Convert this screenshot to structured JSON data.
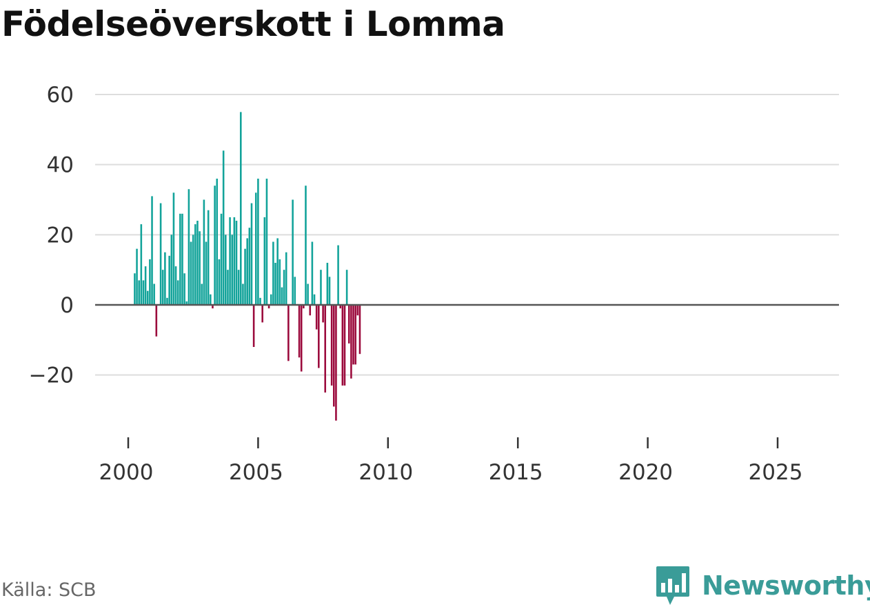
{
  "title": "Födelseöverskott i Lomma",
  "source": "Källa: SCB",
  "brand": {
    "name": "Newsworthy",
    "icon": "bar-chart-speech-icon"
  },
  "colors": {
    "positive": "#12a39a",
    "negative": "#9b0a3c",
    "brand": "#3a9c98",
    "grid": "#dddddd",
    "zero": "#555555"
  },
  "chart_data": {
    "type": "bar",
    "title": "Födelseöverskott i Lomma",
    "xlabel": "",
    "ylabel": "",
    "ylim": [
      -35,
      62
    ],
    "xlim": [
      1999.75,
      2027.3
    ],
    "yticks": [
      {
        "value": 60,
        "label": "60"
      },
      {
        "value": 40,
        "label": "40"
      },
      {
        "value": 20,
        "label": "20"
      },
      {
        "value": 0,
        "label": "0"
      },
      {
        "value": -20,
        "label": "−20"
      }
    ],
    "xticks": [
      {
        "value": 2000,
        "label": "2000"
      },
      {
        "value": 2005,
        "label": "2005"
      },
      {
        "value": 2010,
        "label": "2010"
      },
      {
        "value": 2015,
        "label": "2015"
      },
      {
        "value": 2020,
        "label": "2020"
      },
      {
        "value": 2025,
        "label": "2025"
      }
    ],
    "grid": true,
    "frequency": "monthly",
    "start": "2000-04",
    "values": [
      9,
      16,
      7,
      23,
      7,
      11,
      4,
      13,
      31,
      6,
      -9,
      null,
      29,
      10,
      15,
      2,
      14,
      20,
      32,
      11,
      7,
      26,
      26,
      9,
      1,
      33,
      18,
      20,
      23,
      24,
      21,
      6,
      30,
      18,
      27,
      3,
      -1,
      34,
      36,
      13,
      26,
      44,
      20,
      10,
      25,
      20,
      25,
      24,
      10,
      55,
      6,
      16,
      19,
      22,
      29,
      -12,
      32,
      36,
      2,
      -5,
      25,
      36,
      -1,
      3,
      18,
      12,
      19,
      13,
      5,
      10,
      15,
      -16,
      null,
      30,
      8,
      null,
      -15,
      -19,
      -1,
      34,
      6,
      -3,
      18,
      3,
      -7,
      -18,
      10,
      -5,
      -25,
      12,
      8,
      -23,
      -29,
      -33,
      17,
      -1,
      -23,
      -23,
      10,
      -11,
      -21,
      -17,
      -17,
      -3,
      -14
    ]
  }
}
